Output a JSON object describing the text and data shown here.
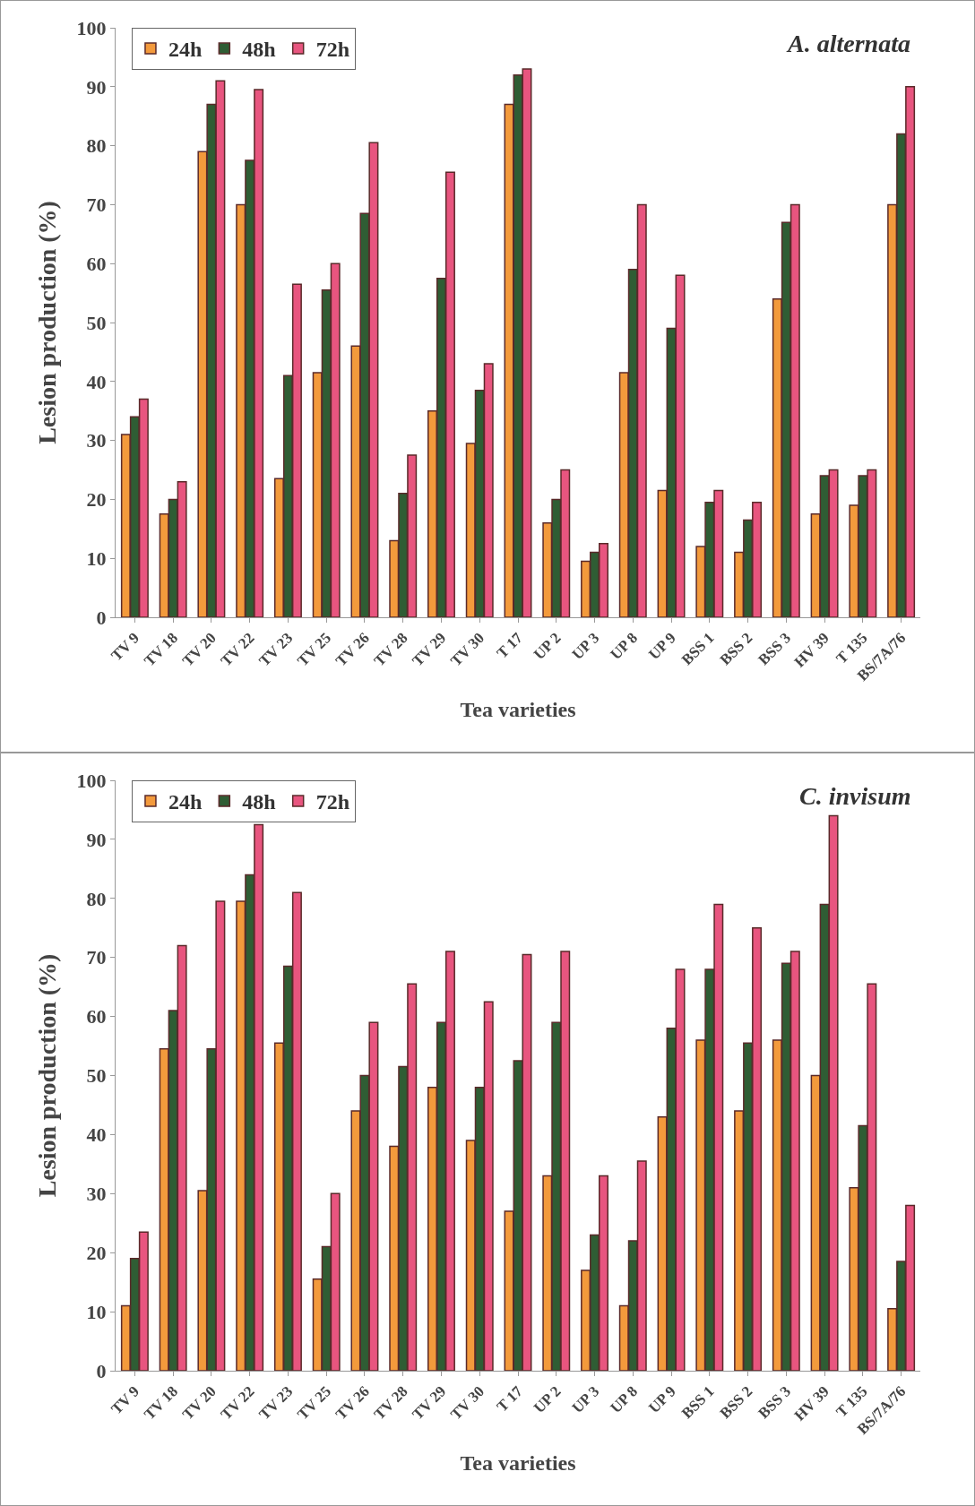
{
  "chart_data": [
    {
      "type": "bar",
      "title": "A. alternata",
      "xlabel": "Tea varieties",
      "ylabel": "Lesion production (%)",
      "categories": [
        "TV 9",
        "TV 18",
        "TV 20",
        "TV 22",
        "TV 23",
        "TV 25",
        "TV 26",
        "TV 28",
        "TV 29",
        "TV 30",
        "T 17",
        "UP 2",
        "UP 3",
        "UP 8",
        "UP 9",
        "BSS 1",
        "BSS 2",
        "BSS 3",
        "HV 39",
        "T 135",
        "BS/7A/76"
      ],
      "series": [
        {
          "name": "24h",
          "color": "#f39a3c",
          "values": [
            31,
            17.5,
            79,
            70,
            23.5,
            41.5,
            46,
            13,
            35,
            29.5,
            87,
            16,
            9.5,
            41.5,
            21.5,
            12,
            11,
            54,
            17.5,
            19,
            70
          ]
        },
        {
          "name": "48h",
          "color": "#2f5d34",
          "values": [
            34,
            20,
            87,
            77.5,
            41,
            55.5,
            68.5,
            21,
            57.5,
            38.5,
            92,
            20,
            11,
            59,
            49,
            19.5,
            16.5,
            67,
            24,
            24,
            82
          ]
        },
        {
          "name": "72h",
          "color": "#e8557f",
          "values": [
            37,
            23,
            91,
            89.5,
            56.5,
            60,
            80.5,
            27.5,
            75.5,
            43,
            93,
            25,
            12.5,
            70,
            58,
            21.5,
            19.5,
            70,
            25,
            25,
            90
          ]
        }
      ],
      "ylim": [
        0,
        100
      ],
      "yticks": [
        0,
        10,
        20,
        30,
        40,
        50,
        60,
        70,
        80,
        90,
        100
      ],
      "grid": false,
      "legend": "top left"
    },
    {
      "type": "bar",
      "title": "C. invisum",
      "xlabel": "Tea varieties",
      "ylabel": "Lesion production (%)",
      "categories": [
        "TV 9",
        "TV 18",
        "TV 20",
        "TV 22",
        "TV 23",
        "TV 25",
        "TV 26",
        "TV 28",
        "TV 29",
        "TV 30",
        "T 17",
        "UP 2",
        "UP 3",
        "UP 8",
        "UP 9",
        "BSS 1",
        "BSS 2",
        "BSS 3",
        "HV 39",
        "T 135",
        "BS/7A/76"
      ],
      "series": [
        {
          "name": "24h",
          "color": "#f39a3c",
          "values": [
            11,
            54.5,
            30.5,
            79.5,
            55.5,
            15.5,
            44,
            38,
            48,
            39,
            27,
            33,
            17,
            11,
            43,
            56,
            44,
            56,
            50,
            31,
            10.5
          ]
        },
        {
          "name": "48h",
          "color": "#2f5d34",
          "values": [
            19,
            61,
            54.5,
            84,
            68.5,
            21,
            50,
            51.5,
            59,
            48,
            52.5,
            59,
            23,
            22,
            58,
            68,
            55.5,
            69,
            79,
            41.5,
            18.5
          ]
        },
        {
          "name": "72h",
          "color": "#e8557f",
          "values": [
            23.5,
            72,
            79.5,
            92.5,
            81,
            30,
            59,
            65.5,
            71,
            62.5,
            70.5,
            71,
            33,
            35.5,
            68,
            79,
            75,
            71,
            94,
            65.5,
            28
          ]
        }
      ],
      "ylim": [
        0,
        100
      ],
      "yticks": [
        0,
        10,
        20,
        30,
        40,
        50,
        60,
        70,
        80,
        90,
        100
      ],
      "grid": false,
      "legend": "top left"
    }
  ]
}
